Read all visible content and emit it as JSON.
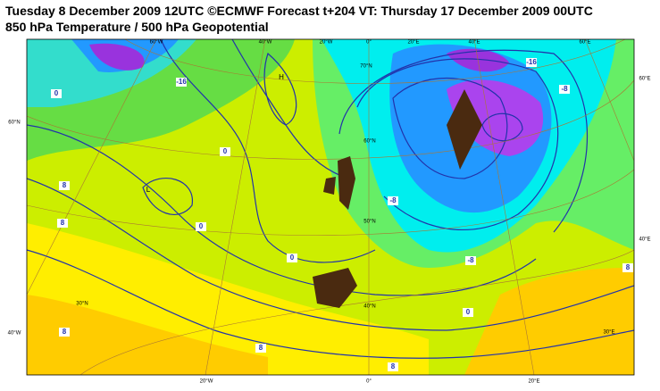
{
  "header": {
    "line1": "Tuesday 8 December 2009 12UTC ©ECMWF Forecast t+204 VT: Thursday 17 December 2009 00UTC",
    "line2": "850 hPa Temperature / 500 hPa Geopotential"
  },
  "map": {
    "top_labels": [
      "60°W",
      "40°W",
      "20°W",
      "0°",
      "20°E",
      "40°E",
      "60°E"
    ],
    "bottom_labels": [
      "20°W",
      "0°",
      "20°E"
    ],
    "left_labels": [
      "60°N",
      "40°W"
    ],
    "right_labels": [
      "60°E",
      "40°E"
    ],
    "inner_labels": [
      "70°N",
      "60°N",
      "50°N",
      "40°N",
      "30°N",
      "30°E"
    ],
    "pressure_centers": [
      "H",
      "L"
    ],
    "contour_labels": [
      "0",
      "0",
      "0",
      "0",
      "8",
      "8",
      "8",
      "8",
      "8",
      "8",
      "-8",
      "-16",
      "-8",
      "0",
      "-8",
      "-16"
    ]
  }
}
